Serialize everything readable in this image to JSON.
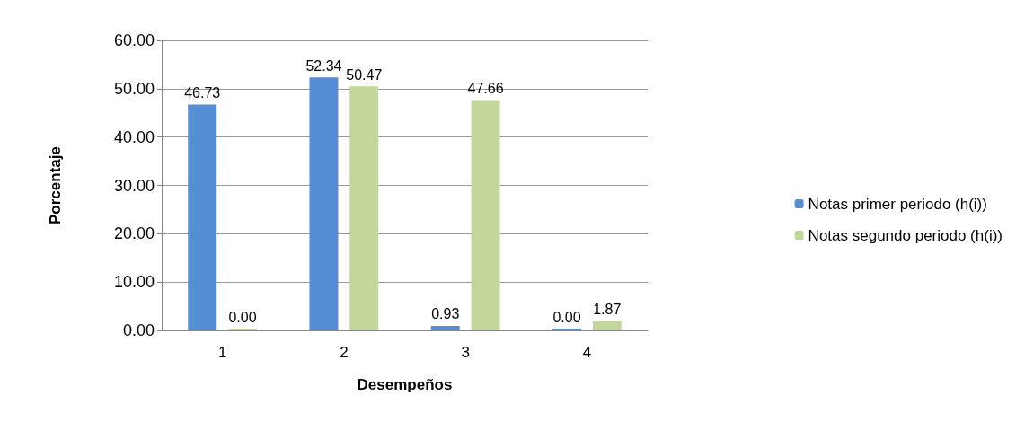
{
  "chart_data": {
    "type": "bar",
    "xlabel": "Desempeños",
    "ylabel": "Porcentaje",
    "categories": [
      "1",
      "2",
      "3",
      "4"
    ],
    "series": [
      {
        "name": "Notas primer periodo (h(i))",
        "color": "#558ed5",
        "values": [
          46.73,
          52.34,
          0.93,
          0.0
        ],
        "value_labels": [
          "46.73",
          "52.34",
          "0.93",
          "0.00"
        ]
      },
      {
        "name": "Notas segundo periodo (h(i))",
        "color": "#c3d69b",
        "values": [
          0.0,
          50.47,
          47.66,
          1.87
        ],
        "value_labels": [
          "0.00",
          "50.47",
          "47.66",
          "1.87"
        ]
      }
    ],
    "ylim": [
      0,
      60
    ],
    "yticks": [
      {
        "value": 0,
        "label": "0.00"
      },
      {
        "value": 10,
        "label": "10.00"
      },
      {
        "value": 20,
        "label": "20.00"
      },
      {
        "value": 30,
        "label": "30.00"
      },
      {
        "value": 40,
        "label": "40.00"
      },
      {
        "value": 50,
        "label": "50.00"
      },
      {
        "value": 60,
        "label": "60.00"
      }
    ],
    "grid": "y",
    "legend": "right"
  }
}
